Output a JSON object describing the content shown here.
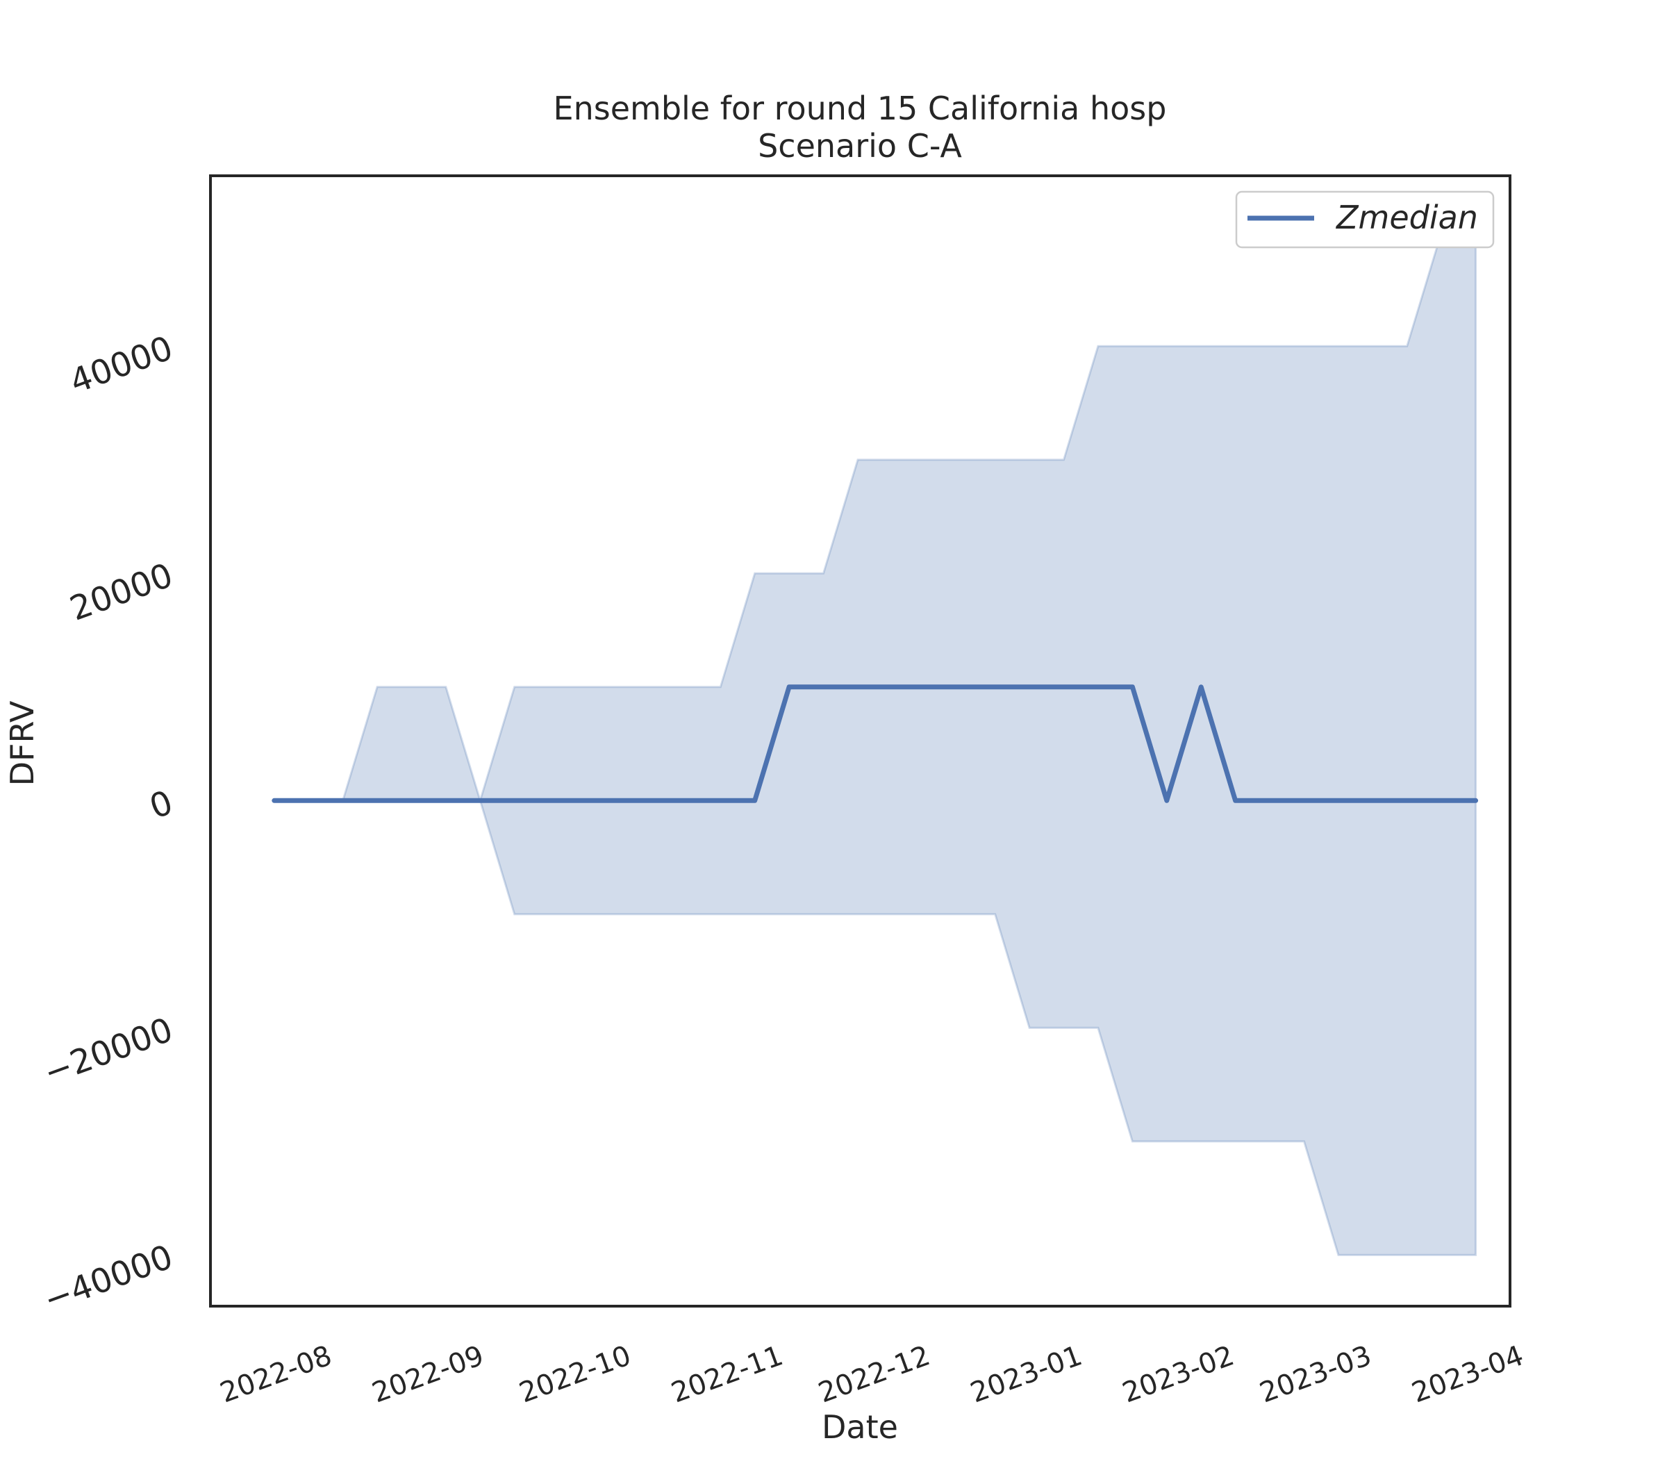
{
  "chart_data": {
    "type": "line",
    "title": "Ensemble for round 15 California hosp",
    "subtitle": "Scenario C-A",
    "xlabel": "Date",
    "ylabel": "DFRV",
    "xlim": [
      "2022-07-10",
      "2023-04-01"
    ],
    "ylim": [
      -44500,
      55000
    ],
    "x_ticks": [
      "2022-08",
      "2022-09",
      "2022-10",
      "2022-11",
      "2022-12",
      "2023-01",
      "2023-02",
      "2023-03",
      "2023-04"
    ],
    "y_ticks": [
      -40000,
      -20000,
      0,
      20000,
      40000
    ],
    "y_tick_labels": [
      "−40000",
      "−20000",
      "0",
      "20000",
      "40000"
    ],
    "legend": {
      "position": "top-right",
      "entries": [
        "Zmedian"
      ]
    },
    "grid": false,
    "colors": {
      "line": "#4c72b0",
      "band": "#4c72b0"
    },
    "x": [
      "2022-07-23",
      "2022-07-30",
      "2022-08-06",
      "2022-08-13",
      "2022-08-20",
      "2022-08-27",
      "2022-09-03",
      "2022-09-10",
      "2022-09-17",
      "2022-09-24",
      "2022-10-01",
      "2022-10-08",
      "2022-10-15",
      "2022-10-22",
      "2022-10-29",
      "2022-11-05",
      "2022-11-12",
      "2022-11-19",
      "2022-11-26",
      "2022-12-03",
      "2022-12-10",
      "2022-12-17",
      "2022-12-24",
      "2022-12-31",
      "2023-01-07",
      "2023-01-14",
      "2023-01-21",
      "2023-01-28",
      "2023-02-04",
      "2023-02-11",
      "2023-02-18",
      "2023-02-25",
      "2023-03-04",
      "2023-03-11",
      "2023-03-18",
      "2023-03-25"
    ],
    "series": [
      {
        "name": "Zmedian",
        "values": [
          0,
          0,
          0,
          0,
          0,
          0,
          0,
          0,
          0,
          0,
          0,
          0,
          0,
          0,
          0,
          10000,
          10000,
          10000,
          10000,
          10000,
          10000,
          10000,
          10000,
          10000,
          10000,
          10000,
          0,
          10000,
          0,
          0,
          0,
          0,
          0,
          0,
          0,
          0
        ]
      }
    ],
    "band": {
      "upper": [
        0,
        0,
        0,
        10000,
        10000,
        10000,
        0,
        10000,
        10000,
        10000,
        10000,
        10000,
        10000,
        10000,
        20000,
        20000,
        20000,
        30000,
        30000,
        30000,
        30000,
        30000,
        30000,
        30000,
        40000,
        40000,
        40000,
        40000,
        40000,
        40000,
        40000,
        40000,
        40000,
        40000,
        50000,
        50000
      ],
      "lower": [
        0,
        0,
        0,
        0,
        0,
        0,
        0,
        -10000,
        -10000,
        -10000,
        -10000,
        -10000,
        -10000,
        -10000,
        -10000,
        -10000,
        -10000,
        -10000,
        -10000,
        -10000,
        -10000,
        -10000,
        -20000,
        -20000,
        -20000,
        -30000,
        -30000,
        -30000,
        -30000,
        -30000,
        -30000,
        -40000,
        -40000,
        -40000,
        -40000,
        -40000
      ]
    }
  }
}
